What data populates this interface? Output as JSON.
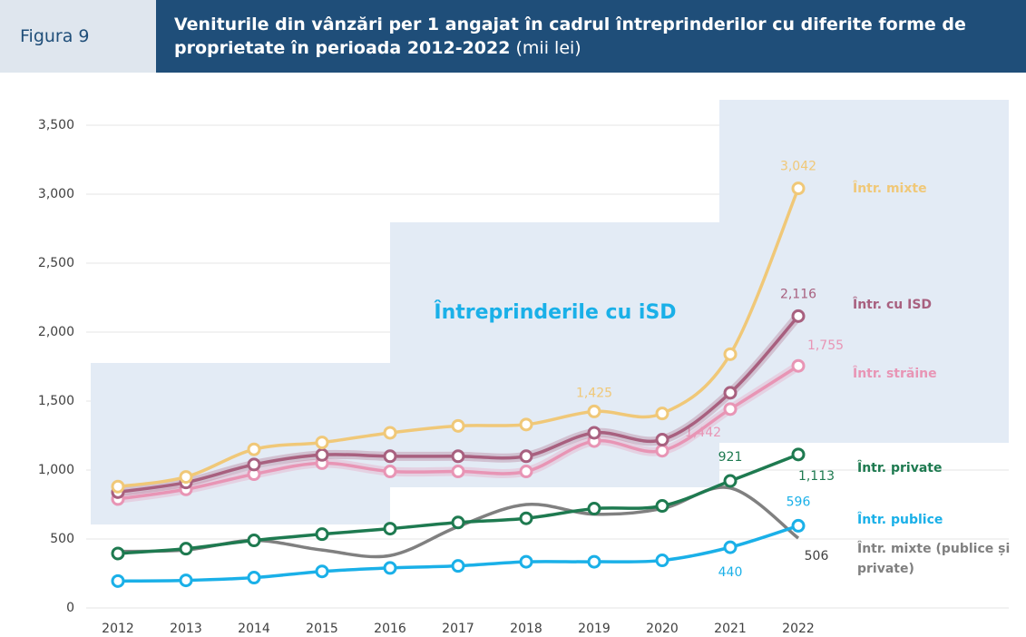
{
  "header": {
    "figure": "Figura 9",
    "title": "Veniturile din vânzări per 1 angajat în cadrul întreprinderilor cu diferite forme de proprietate în perioada 2012-2022",
    "unit": "(mii lei)"
  },
  "chart_data": {
    "type": "line",
    "annotation": "Întreprinderile cu iSD",
    "categories": [
      "2012",
      "2013",
      "2014",
      "2015",
      "2016",
      "2017",
      "2018",
      "2019",
      "2020",
      "2021",
      "2022"
    ],
    "ylim": [
      0,
      3500
    ],
    "yticks": [
      0,
      500,
      {
        "value": 1000,
        "label": "1,000"
      },
      {
        "value": 1500,
        "label": "1,500"
      },
      {
        "value": 2000,
        "label": "2,000"
      },
      {
        "value": 2500,
        "label": "2,500"
      },
      {
        "value": 3000,
        "label": "3,000"
      },
      {
        "value": 3500,
        "label": "3,500"
      }
    ],
    "grid": true,
    "series": [
      {
        "name": "Într. mixte",
        "color": "#f0c878",
        "markers": true,
        "values": [
          880,
          950,
          1150,
          1200,
          1270,
          1320,
          1330,
          1425,
          1410,
          1840,
          3042
        ],
        "value_labels": [
          null,
          null,
          null,
          null,
          null,
          null,
          null,
          "1,425",
          null,
          null,
          "3,042"
        ]
      },
      {
        "name": "Într. cu ISD",
        "color": "#a8607f",
        "markers": true,
        "values": [
          840,
          910,
          1040,
          1110,
          1100,
          1100,
          1100,
          1270,
          1220,
          1560,
          2116
        ],
        "value_labels": [
          null,
          null,
          null,
          null,
          null,
          null,
          null,
          null,
          null,
          null,
          "2,116"
        ]
      },
      {
        "name": "Într. străine",
        "color": "#e895b5",
        "markers": true,
        "values": [
          790,
          860,
          970,
          1050,
          990,
          990,
          990,
          1210,
          1140,
          1442,
          1755
        ],
        "value_labels": [
          null,
          null,
          null,
          null,
          null,
          null,
          null,
          null,
          null,
          "1,442",
          "1,755"
        ]
      },
      {
        "name": "Într. private",
        "color": "#1e7a50",
        "markers": true,
        "values": [
          395,
          430,
          490,
          535,
          575,
          620,
          650,
          720,
          740,
          921,
          1113
        ],
        "value_labels": [
          null,
          null,
          null,
          null,
          null,
          null,
          null,
          null,
          null,
          "921",
          "1,113"
        ]
      },
      {
        "name": "Într. publice",
        "color": "#1ab0e8",
        "markers": true,
        "values": [
          195,
          200,
          220,
          265,
          290,
          305,
          335,
          335,
          345,
          440,
          596
        ],
        "value_labels": [
          null,
          null,
          null,
          null,
          null,
          null,
          null,
          null,
          null,
          "440",
          "596"
        ]
      },
      {
        "name": "Într. mixte (publice și private)",
        "color": "#808080",
        "markers": false,
        "values": [
          410,
          420,
          490,
          420,
          380,
          590,
          750,
          680,
          720,
          870,
          506
        ],
        "value_labels": [
          null,
          null,
          null,
          null,
          null,
          null,
          null,
          null,
          null,
          null,
          "506"
        ]
      }
    ]
  }
}
